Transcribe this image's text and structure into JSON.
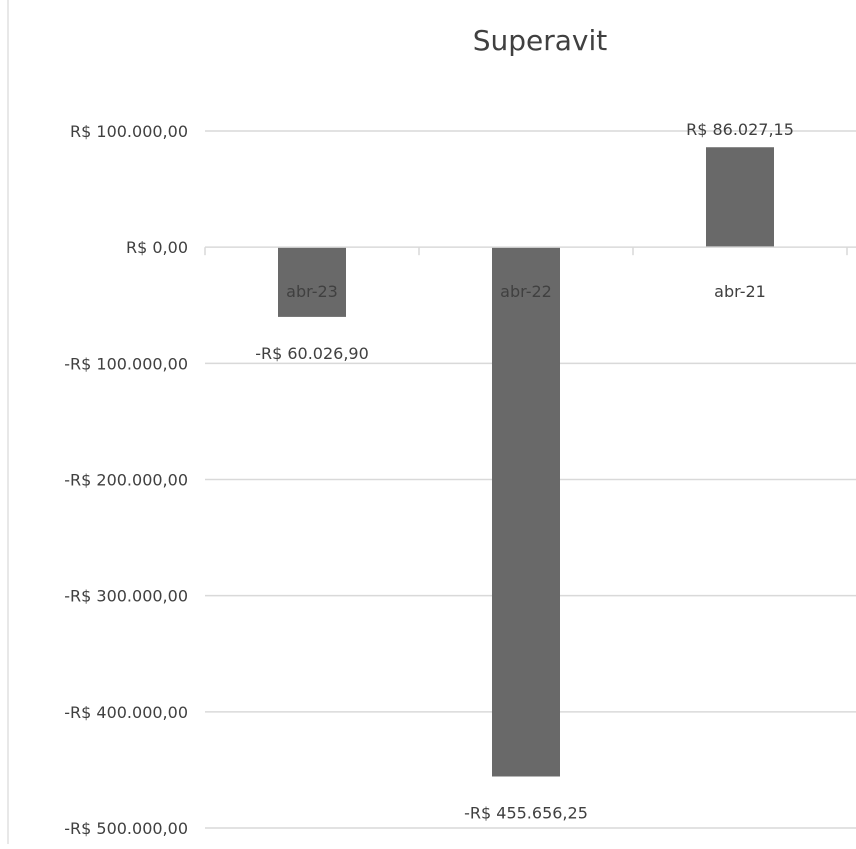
{
  "chart_data": {
    "type": "bar",
    "title": "Superavit",
    "categories": [
      "abr-23",
      "abr-22",
      "abr-21"
    ],
    "values": [
      -60026.9,
      -455656.25,
      86027.15
    ],
    "data_labels": [
      "-R$ 60.026,90",
      "-R$ 455.656,25",
      "R$ 86.027,15"
    ],
    "ylim": [
      -500000,
      100000
    ],
    "yticks": [
      100000,
      0,
      -100000,
      -200000,
      -300000,
      -400000,
      -500000
    ],
    "ytick_labels": [
      "R$ 100.000,00",
      "R$ 0,00",
      "-R$ 100.000,00",
      "-R$ 200.000,00",
      "-R$ 300.000,00",
      "-R$ 400.000,00",
      "-R$ 500.000,00"
    ],
    "grid": true,
    "legend": "none",
    "bar_color": "#696969",
    "grid_color": "#d9d9d9",
    "text_color": "#404040"
  }
}
